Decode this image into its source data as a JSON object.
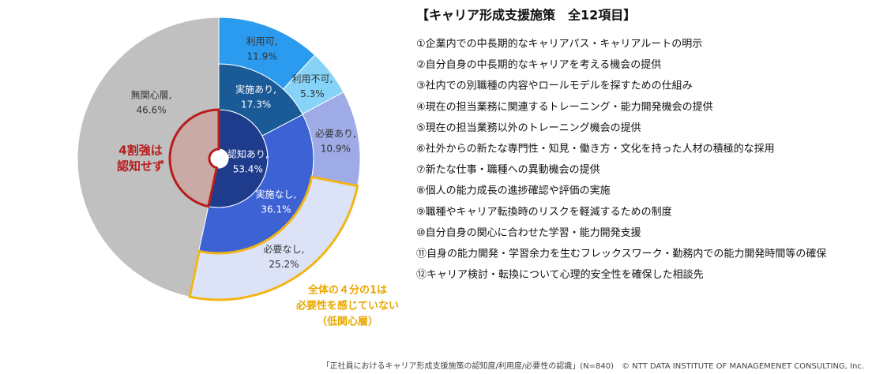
{
  "chart_data": {
    "type": "sunburst",
    "rings": [
      {
        "segments": [
          {
            "name": "認知あり,",
            "values": [
              53.4
            ],
            "value_labels": [
              "53.4%"
            ],
            "color": "#1f3b8c",
            "label_color": "#ffffff"
          },
          {
            "name": null,
            "values": [
              46.6
            ],
            "color": "#c9aaa6",
            "outline": "#b81c1c"
          }
        ]
      },
      {
        "segments": [
          {
            "name": "実施あり,",
            "values": [
              17.3
            ],
            "value_labels": [
              "17.3%"
            ],
            "color": "#1a5a96",
            "label_color": "#ffffff"
          },
          {
            "name": "実施なし,",
            "values": [
              36.1
            ],
            "value_labels": [
              "36.1%"
            ],
            "color": "#3d62d4",
            "label_color": "#ffffff"
          },
          {
            "name": "無関心層,",
            "values": [
              46.6
            ],
            "value_labels": [
              "46.6%"
            ],
            "color": "#c0c0c0",
            "label_color": "#333333",
            "span": 2
          }
        ]
      },
      {
        "segments": [
          {
            "name": "利用可,",
            "values": [
              11.9
            ],
            "value_labels": [
              "11.9%"
            ],
            "color": "#2b9bf0",
            "label_color": "#333333"
          },
          {
            "name": "利用不可,",
            "values": [
              5.3
            ],
            "value_labels": [
              "5.3%"
            ],
            "color": "#86d3f7",
            "label_color": "#333333"
          },
          {
            "name": "必要あり,",
            "values": [
              10.9
            ],
            "value_labels": [
              "10.9%"
            ],
            "color": "#9eabe6",
            "label_color": "#333333"
          },
          {
            "name": "必要なし,",
            "values": [
              25.2
            ],
            "value_labels": [
              "25.2%"
            ],
            "color": "#dde3f7",
            "label_color": "#333333",
            "outline": "#f2b516"
          }
        ]
      }
    ],
    "annotations": [
      {
        "lines": [
          "4割強は",
          "認知せず"
        ],
        "color": "#b81c1c"
      },
      {
        "lines": [
          "全体の４分の1は",
          "必要性を感じていない",
          "（低関心層）"
        ],
        "color": "#e8a800"
      }
    ]
  },
  "panel": {
    "title": "【キャリア形成支援施策　全12項目】",
    "items": [
      "①企業内での中長期的なキャリアパス・キャリアルートの明示",
      "②自分自身の中長期的なキャリアを考える機会の提供",
      "③社内での別職種の内容やロールモデルを探すための仕組み",
      "④現在の担当業務に関連するトレーニング・能力開発機会の提供",
      "⑤現在の担当業務以外のトレーニング機会の提供",
      "⑥社外からの新たな専門性・知見・働き方・文化を持った人材の積極的な採用",
      "⑦新たな仕事・職種への異動機会の提供",
      "⑧個人の能力成長の進捗確認や評価の実施",
      "⑨職種やキャリア転換時のリスクを軽減するための制度",
      "⑩自分自身の関心に合わせた学習・能力開発支援",
      "⑪自身の能力開発・学習余力を生むフレックスワーク・勤務内での能力開発時間等の確保",
      "⑫キャリア検討・転換について心理的安全性を確保した相談先"
    ]
  },
  "footer": "「正社員におけるキャリア形成支援施策の認知度/利用度/必要性の認識」(N=840)　© NTT DATA INSTITUTE OF MANAGEMENET CONSULTING, Inc."
}
